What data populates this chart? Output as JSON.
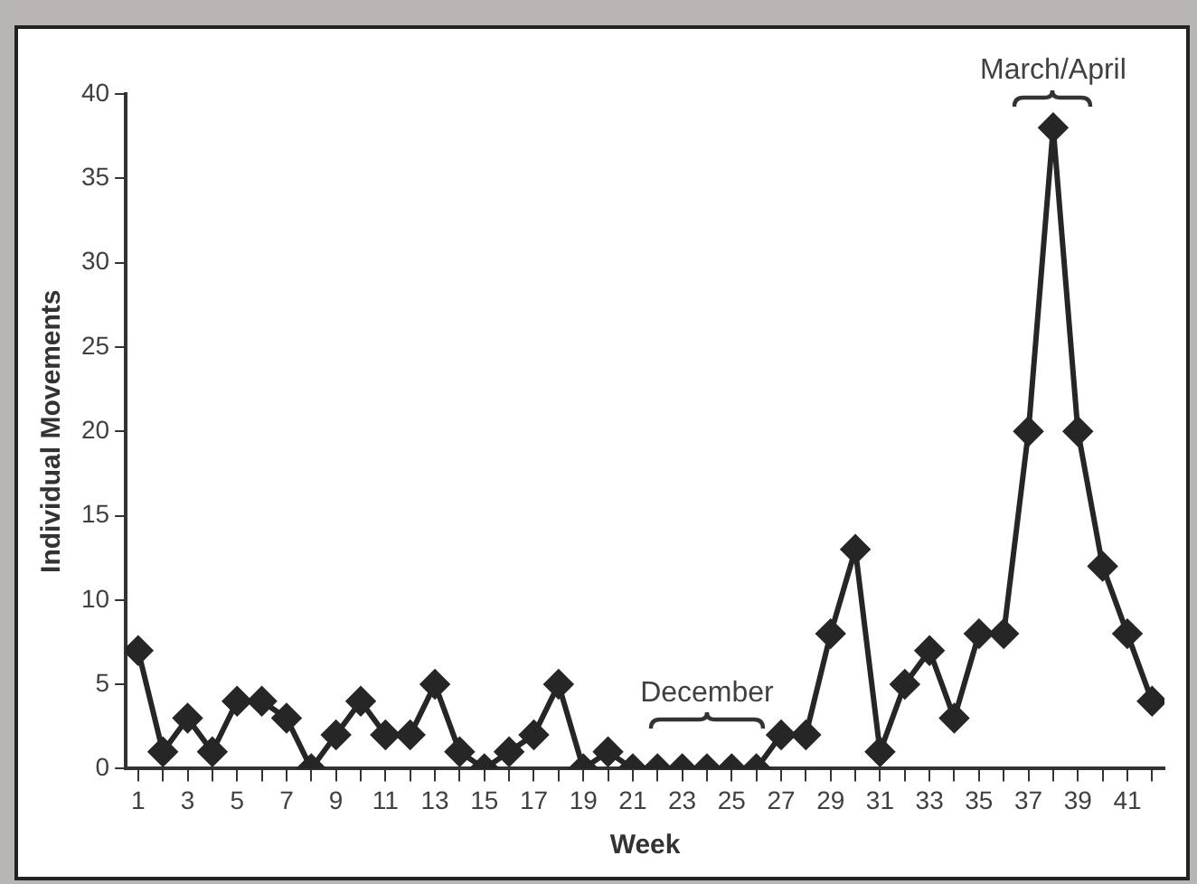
{
  "chart_data": {
    "type": "line",
    "xlabel": "Week",
    "ylabel": "Individual Movements",
    "x": [
      1,
      2,
      3,
      4,
      5,
      6,
      7,
      8,
      9,
      10,
      11,
      12,
      13,
      14,
      15,
      16,
      17,
      18,
      19,
      20,
      21,
      22,
      23,
      24,
      25,
      26,
      27,
      28,
      29,
      30,
      31,
      32,
      33,
      34,
      35,
      36,
      37,
      38,
      39,
      40,
      41,
      42
    ],
    "series": [
      {
        "color": "#262626",
        "values": [
          7,
          1,
          3,
          1,
          4,
          4,
          3,
          0,
          2,
          4,
          2,
          2,
          5,
          1,
          0,
          1,
          2,
          5,
          0,
          1,
          0,
          0,
          0,
          0,
          0,
          0,
          2,
          2,
          8,
          13,
          1,
          5,
          7,
          3,
          8,
          8,
          20,
          38,
          20,
          12,
          8,
          4
        ]
      }
    ],
    "xlim": [
      0.5,
      42.5
    ],
    "xticks": [
      1,
      {
        "value": 2,
        "label": null
      },
      3,
      {
        "value": 4,
        "label": null
      },
      5,
      {
        "value": 6,
        "label": null
      },
      7,
      {
        "value": 8,
        "label": null
      },
      9,
      {
        "value": 10,
        "label": null
      },
      11,
      {
        "value": 12,
        "label": null
      },
      13,
      {
        "value": 14,
        "label": null
      },
      15,
      {
        "value": 16,
        "label": null
      },
      17,
      {
        "value": 18,
        "label": null
      },
      19,
      {
        "value": 20,
        "label": null
      },
      21,
      {
        "value": 22,
        "label": null
      },
      23,
      {
        "value": 24,
        "label": null
      },
      25,
      {
        "value": 26,
        "label": null
      },
      27,
      {
        "value": 28,
        "label": null
      },
      29,
      {
        "value": 30,
        "label": null
      },
      31,
      {
        "value": 32,
        "label": null
      },
      33,
      {
        "value": 34,
        "label": null
      },
      35,
      {
        "value": 36,
        "label": null
      },
      37,
      {
        "value": 38,
        "label": null
      },
      39,
      {
        "value": 40,
        "label": null
      },
      41,
      {
        "value": 42,
        "label": null
      }
    ],
    "ylim": [
      0,
      40
    ],
    "yticks": [
      0,
      5,
      10,
      15,
      20,
      25,
      30,
      35,
      40
    ],
    "grid": false,
    "legend": false,
    "marker": "diamond",
    "line_style": "solid",
    "annotations": [
      {
        "text": "December",
        "x": 24,
        "y": 0
      },
      {
        "text": "March/April",
        "x": 38,
        "y": 38
      }
    ]
  }
}
